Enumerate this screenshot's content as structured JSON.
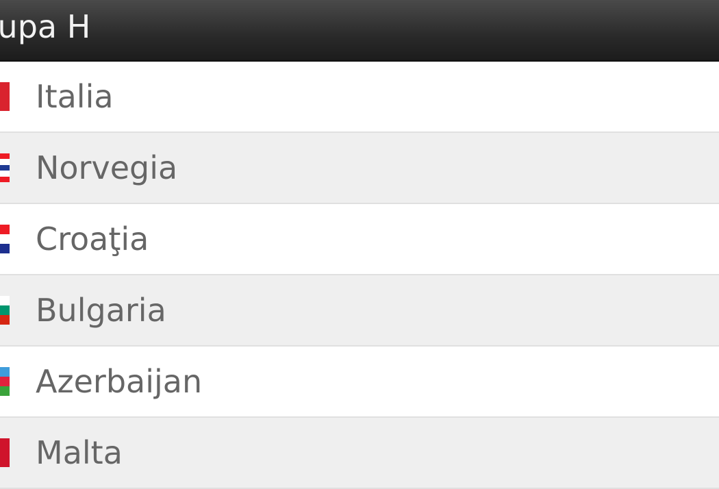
{
  "group": {
    "title": "Grupa H"
  },
  "teams": [
    {
      "name": "Italia",
      "flag": "italy-flag",
      "orientation": "vertical",
      "colors": [
        "#d9232e"
      ]
    },
    {
      "name": "Norvegia",
      "flag": "norway-flag",
      "orientation": "horizontal",
      "colors": [
        "#ee1c25",
        "#ffffff",
        "#1f3a93",
        "#ffffff",
        "#ee1c25"
      ]
    },
    {
      "name": "Croaţia",
      "flag": "croatia-flag",
      "orientation": "horizontal",
      "colors": [
        "#ee1c25",
        "#ffffff",
        "#1d2f8f"
      ]
    },
    {
      "name": "Bulgaria",
      "flag": "bulgaria-flag",
      "orientation": "horizontal",
      "colors": [
        "#ffffff",
        "#00966e",
        "#d62612"
      ]
    },
    {
      "name": "Azerbaijan",
      "flag": "azerbaijan-flag",
      "orientation": "horizontal",
      "colors": [
        "#3f9ddb",
        "#e2223d",
        "#3aa33b"
      ]
    },
    {
      "name": "Malta",
      "flag": "malta-flag",
      "orientation": "vertical",
      "colors": [
        "#cf142b"
      ]
    }
  ]
}
